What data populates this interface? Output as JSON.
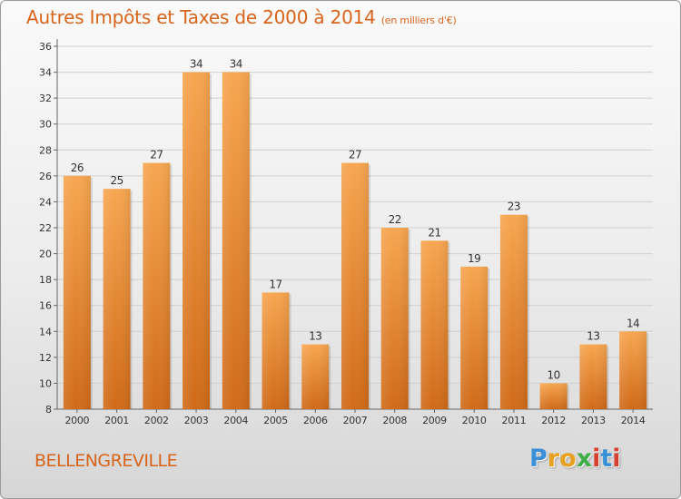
{
  "header": {
    "title": "Autres Impôts et Taxes de 2000 à 2014",
    "unit": "(en milliers d'€)"
  },
  "footer": {
    "commune": "BELLENGREVILLE",
    "logo_letters": [
      "P",
      "r",
      "o",
      "x",
      "i",
      "t",
      "i"
    ],
    "logo_colors": [
      "#3a8fd6",
      "#e8a020",
      "#e8a020",
      "#3fae49",
      "#d6402e",
      "#3a8fd6",
      "#d6402e"
    ]
  },
  "colors": {
    "accent": "#d8641a",
    "bar_top": "#f7a650",
    "bar_bottom": "#d06a18",
    "grid": "#d0d0d0"
  },
  "chart_data": {
    "type": "bar",
    "categories": [
      "2000",
      "2001",
      "2002",
      "2003",
      "2004",
      "2005",
      "2006",
      "2007",
      "2008",
      "2009",
      "2010",
      "2011",
      "2012",
      "2013",
      "2014"
    ],
    "values": [
      26,
      25,
      27,
      34,
      34,
      17,
      13,
      27,
      22,
      21,
      19,
      23,
      10,
      13,
      14
    ],
    "ylim": [
      8,
      36
    ],
    "yticks": [
      8,
      10,
      12,
      14,
      16,
      18,
      20,
      22,
      24,
      26,
      28,
      30,
      32,
      34,
      36
    ],
    "grid": true
  }
}
